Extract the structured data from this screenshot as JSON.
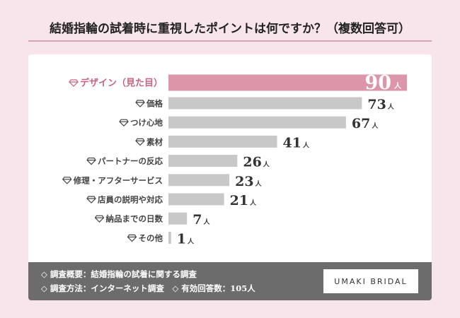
{
  "chart_data": {
    "type": "bar",
    "orientation": "horizontal",
    "title": "結婚指輪の試着時に重視したポイントは何ですか？（複数回答可）",
    "categories": [
      "デザイン（見た目）",
      "価格",
      "つけ心地",
      "素材",
      "パートナーの反応",
      "修理・アフターサービス",
      "店員の説明や対応",
      "納品までの日数",
      "その他"
    ],
    "values": [
      90,
      73,
      67,
      41,
      26,
      23,
      21,
      7,
      1
    ],
    "unit": "人",
    "highlight_index": 0,
    "colors": {
      "highlight": "#dd96a9",
      "bar": "#c8c8c8",
      "highlight_label": "#c5647f",
      "label": "#444444",
      "value": "#333333"
    },
    "label_icon": "diamond-icon",
    "xlim": [
      0,
      90
    ]
  },
  "footer": {
    "line1": "◇ 調査概要：結婚指輪の試着に関する調査",
    "line2": "◇ 調査方法：インターネット調査　◇ 有効回答数：105人",
    "logo": "UMAKI BRIDAL"
  }
}
